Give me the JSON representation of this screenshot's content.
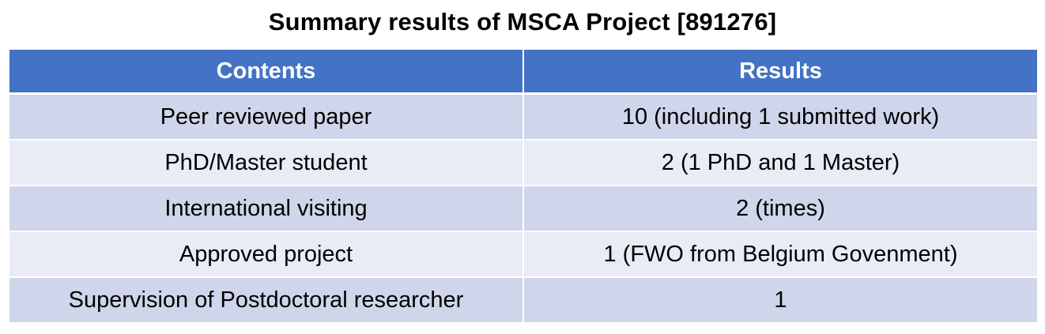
{
  "title": "Summary results of MSCA Project [891276]",
  "table": {
    "headers": [
      "Contents",
      "Results"
    ],
    "rows": [
      [
        "Peer reviewed paper",
        "10 (including 1 submitted work)"
      ],
      [
        "PhD/Master student",
        "2 (1 PhD and 1 Master)"
      ],
      [
        "International visiting",
        "2 (times)"
      ],
      [
        "Approved project",
        "1 (FWO from Belgium Govenment)"
      ],
      [
        "Supervision of Postdoctoral researcher",
        "1"
      ]
    ]
  },
  "colors": {
    "header_bg": "#4472c4",
    "header_text": "#ffffff",
    "row_odd_bg": "#cfd5ea",
    "row_even_bg": "#e9ebf5"
  }
}
